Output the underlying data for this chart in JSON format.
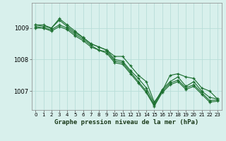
{
  "title": "Graphe pression niveau de la mer (hPa)",
  "background_color": "#d8f0ec",
  "grid_color": "#b8ddd8",
  "line_color": "#1a6e2e",
  "xlim": [
    -0.5,
    23.5
  ],
  "ylim": [
    1006.4,
    1009.8
  ],
  "yticks": [
    1007,
    1008,
    1009
  ],
  "xticks": [
    0,
    1,
    2,
    3,
    4,
    5,
    6,
    7,
    8,
    9,
    10,
    11,
    12,
    13,
    14,
    15,
    16,
    17,
    18,
    19,
    20,
    21,
    22,
    23
  ],
  "series": [
    [
      1009.1,
      1009.1,
      1009.0,
      1009.3,
      1009.1,
      1008.9,
      1008.7,
      1008.5,
      1008.4,
      1008.3,
      1008.1,
      1008.1,
      1007.8,
      1007.5,
      1007.3,
      1006.65,
      1007.0,
      1007.5,
      1007.55,
      1007.45,
      1007.4,
      1007.1,
      1007.0,
      1006.75
    ],
    [
      1009.1,
      1009.05,
      1009.0,
      1009.25,
      1009.05,
      1008.85,
      1008.7,
      1008.5,
      1008.4,
      1008.3,
      1008.0,
      1007.95,
      1007.65,
      1007.4,
      1007.1,
      1006.6,
      1007.05,
      1007.3,
      1007.45,
      1007.15,
      1007.3,
      1007.0,
      1006.8,
      1006.75
    ],
    [
      1009.05,
      1009.0,
      1008.95,
      1009.1,
      1009.0,
      1008.8,
      1008.65,
      1008.45,
      1008.3,
      1008.25,
      1007.95,
      1007.9,
      1007.6,
      1007.3,
      1007.0,
      1006.55,
      1007.0,
      1007.25,
      1007.35,
      1007.1,
      1007.2,
      1006.95,
      1006.7,
      1006.72
    ],
    [
      1009.0,
      1009.0,
      1008.9,
      1009.05,
      1008.95,
      1008.75,
      1008.6,
      1008.4,
      1008.3,
      1008.2,
      1007.9,
      1007.85,
      1007.55,
      1007.25,
      1006.95,
      1006.52,
      1006.95,
      1007.2,
      1007.3,
      1007.05,
      1007.15,
      1006.9,
      1006.65,
      1006.68
    ]
  ]
}
